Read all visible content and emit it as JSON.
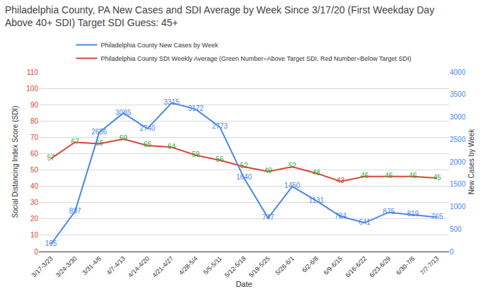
{
  "chart_data": {
    "type": "line",
    "title": "Philadelphia County, PA New Cases and SDI Average by Week Since 3/17/20 (First Weekday Day Above 40+ SDI) Target SDI Guess: 45+",
    "x_label": "Date",
    "y_label": "Social Distancing Index Score (SDI)",
    "y2_label": "New Cases by Week",
    "categories": [
      "3/17-3/23",
      "3/24-3/30",
      "3/31-4/6",
      "4/7-4/13",
      "4/14-4/20",
      "4/21-4/27",
      "4/28-5/4",
      "5/5-5/11",
      "5/12-5/18",
      "5/19-5/25",
      "5/26-6/1",
      "6/2-6/8",
      "6/9-6/15",
      "6/16-6/22",
      "6/23-6/29",
      "6/30-7/6",
      "7/7-7/13"
    ],
    "series": [
      {
        "name": "Philadelphia County New Cases by Week",
        "color": "#4a86e8",
        "axis": "y2",
        "values": [
          165,
          897,
          2656,
          3085,
          2740,
          3315,
          3172,
          2773,
          1640,
          747,
          1450,
          1131,
          784,
          641,
          875,
          819,
          765
        ]
      },
      {
        "name": "Philadelphia County SDI Weekly Average (Green Number=Above Target SDI, Red Number=Below Target SDI)",
        "color": "#db4437",
        "colors": [
          "#38a33c",
          "#38a33c",
          "#38a33c",
          "#38a33c",
          "#38a33c",
          "#38a33c",
          "#38a33c",
          "#38a33c",
          "#38a33c",
          "#38a33c",
          "#38a33c",
          "#38a33c",
          "#db4437",
          "#38a33c",
          "#38a33c",
          "#38a33c",
          "#38a33c"
        ],
        "values": [
          57,
          67,
          66,
          69,
          65,
          64,
          59,
          56,
          52,
          49,
          52,
          48,
          43,
          46,
          46,
          46,
          45
        ]
      }
    ],
    "ylim": [
      0,
      110
    ],
    "yticks": [
      0,
      10,
      20,
      30,
      40,
      50,
      60,
      70,
      80,
      90,
      100,
      110
    ],
    "y2lim": [
      0,
      4000
    ],
    "y2ticks": [
      0,
      500,
      1000,
      1500,
      2000,
      2500,
      3000,
      3500,
      4000
    ],
    "grid": true,
    "legend": "top",
    "data_labels": true
  }
}
